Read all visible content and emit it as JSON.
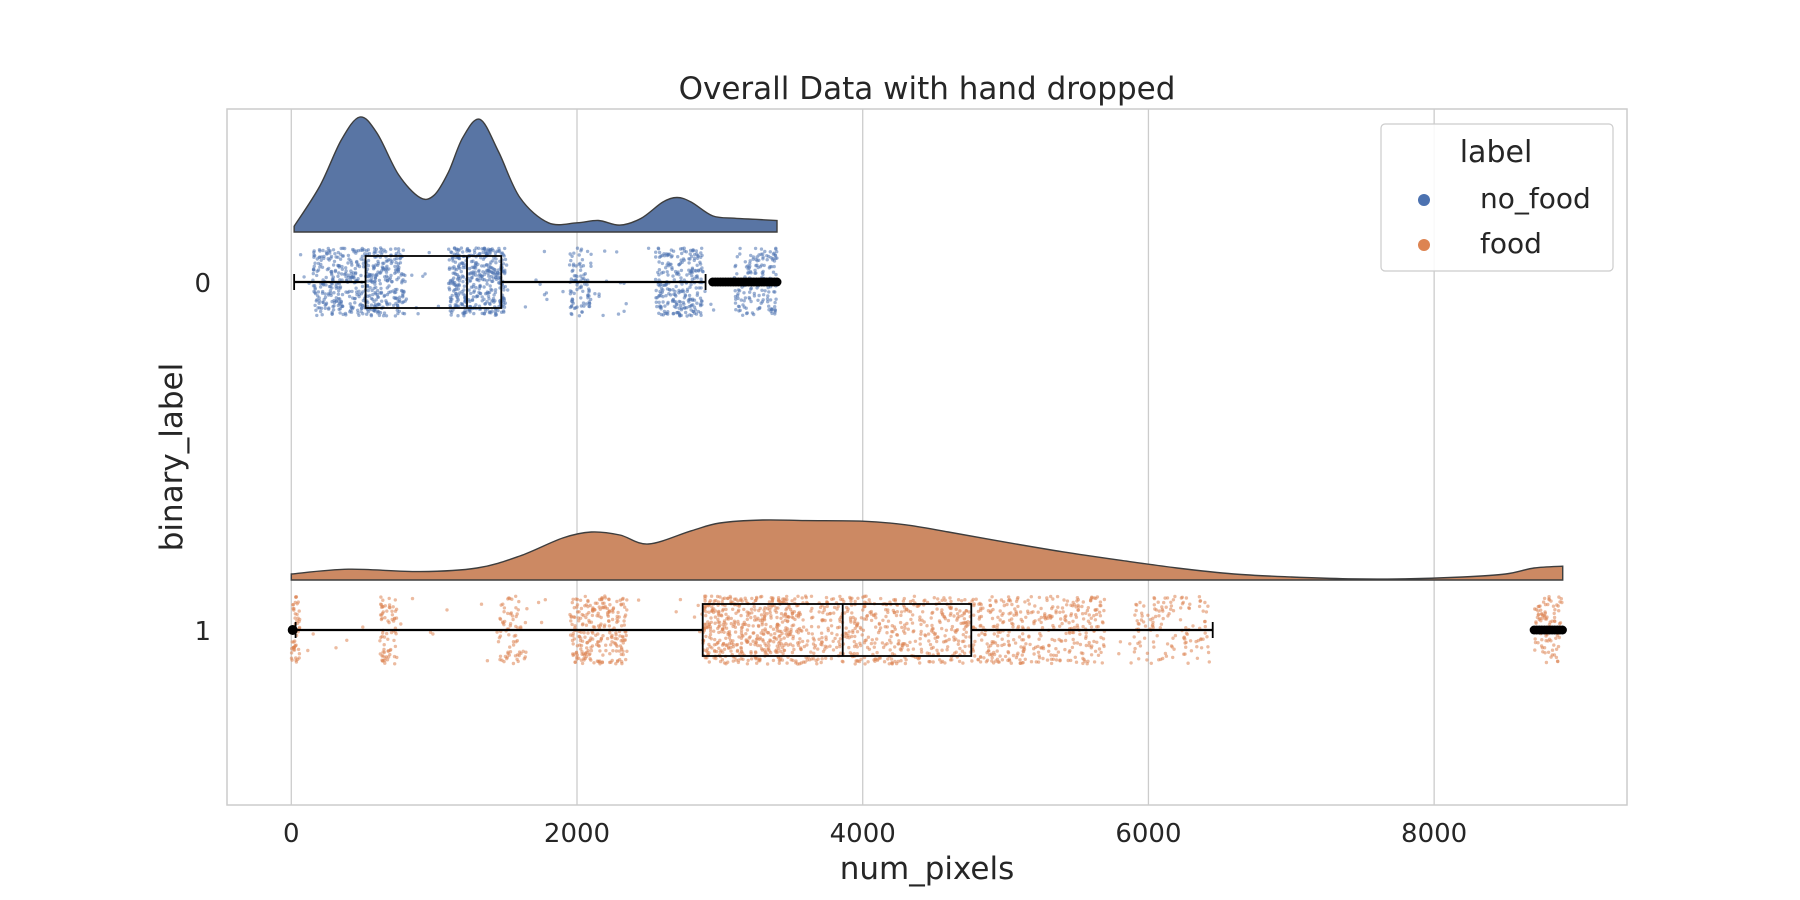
{
  "chart_data": {
    "type": "raincloud",
    "title": "Overall Data with hand dropped",
    "xlabel": "num_pixels",
    "ylabel": "binary_label",
    "xlim": [
      -450,
      9350
    ],
    "xticks": [
      0,
      2000,
      4000,
      6000,
      8000
    ],
    "xtick_labels": [
      "0",
      "2000",
      "4000",
      "6000",
      "8000"
    ],
    "categories": [
      "0",
      "1"
    ],
    "grid": "vertical",
    "legend": {
      "title": "label",
      "position": "top-right",
      "entries": [
        "no_food",
        "food"
      ]
    },
    "colors": {
      "no_food": "#4c72b0",
      "food": "#dd8452",
      "cloud_no_food": "#5975a4",
      "cloud_food": "#cc8963",
      "grid": "#cccccc",
      "frame": "#cccccc"
    },
    "series": [
      {
        "name": "no_food",
        "category": "0",
        "box": {
          "whisker_low": 20,
          "q1": 520,
          "median": 1230,
          "q3": 1470,
          "whisker_high": 2900
        },
        "outliers_range": [
          2950,
          3400
        ],
        "density": {
          "x": [
            20,
            200,
            350,
            480,
            600,
            750,
            900,
            1000,
            1100,
            1200,
            1320,
            1450,
            1600,
            1800,
            2000,
            2150,
            2300,
            2450,
            2600,
            2700,
            2800,
            2950,
            3100,
            3250,
            3400
          ],
          "y": [
            0.05,
            0.4,
            0.8,
            1.0,
            0.86,
            0.5,
            0.3,
            0.32,
            0.52,
            0.82,
            0.98,
            0.7,
            0.3,
            0.08,
            0.08,
            0.1,
            0.06,
            0.12,
            0.26,
            0.3,
            0.26,
            0.14,
            0.12,
            0.11,
            0.1
          ]
        },
        "point_clusters": [
          {
            "x": [
              150,
              800
            ],
            "n": 500
          },
          {
            "x": [
              1100,
              1500
            ],
            "n": 400
          },
          {
            "x": [
              1950,
              2100
            ],
            "n": 80
          },
          {
            "x": [
              2550,
              2880
            ],
            "n": 250
          },
          {
            "x": [
              3100,
              3400
            ],
            "n": 150
          },
          {
            "x": [
              20,
              3400
            ],
            "n": 90
          }
        ]
      },
      {
        "name": "food",
        "category": "1",
        "box": {
          "whisker_low": 30,
          "q1": 2880,
          "median": 3860,
          "q3": 4760,
          "whisker_high": 6450
        },
        "outliers_range": [
          8700,
          8900
        ],
        "outliers_low": [
          10
        ],
        "density": {
          "x": [
            0,
            400,
            900,
            1300,
            1600,
            1900,
            2100,
            2300,
            2500,
            2800,
            3000,
            3300,
            3600,
            4000,
            4300,
            4600,
            5000,
            5400,
            5800,
            6200,
            6600,
            7000,
            7400,
            7800,
            8200,
            8500,
            8700,
            8900
          ],
          "y": [
            0.1,
            0.18,
            0.14,
            0.2,
            0.4,
            0.7,
            0.8,
            0.75,
            0.6,
            0.82,
            0.95,
            1.0,
            0.99,
            0.98,
            0.92,
            0.8,
            0.63,
            0.47,
            0.33,
            0.2,
            0.1,
            0.05,
            0.02,
            0.02,
            0.05,
            0.1,
            0.2,
            0.23
          ]
        },
        "point_clusters": [
          {
            "x": [
              0,
              60
            ],
            "n": 50
          },
          {
            "x": [
              620,
              740
            ],
            "n": 70
          },
          {
            "x": [
              1450,
              1650
            ],
            "n": 70
          },
          {
            "x": [
              1950,
              2350
            ],
            "n": 250
          },
          {
            "x": [
              2880,
              3500
            ],
            "n": 450
          },
          {
            "x": [
              3500,
              4800
            ],
            "n": 550
          },
          {
            "x": [
              4800,
              5700
            ],
            "n": 350
          },
          {
            "x": [
              5900,
              6450
            ],
            "n": 120
          },
          {
            "x": [
              8700,
              8900
            ],
            "n": 90
          },
          {
            "x": [
              0,
              6450
            ],
            "n": 80
          }
        ]
      }
    ]
  }
}
